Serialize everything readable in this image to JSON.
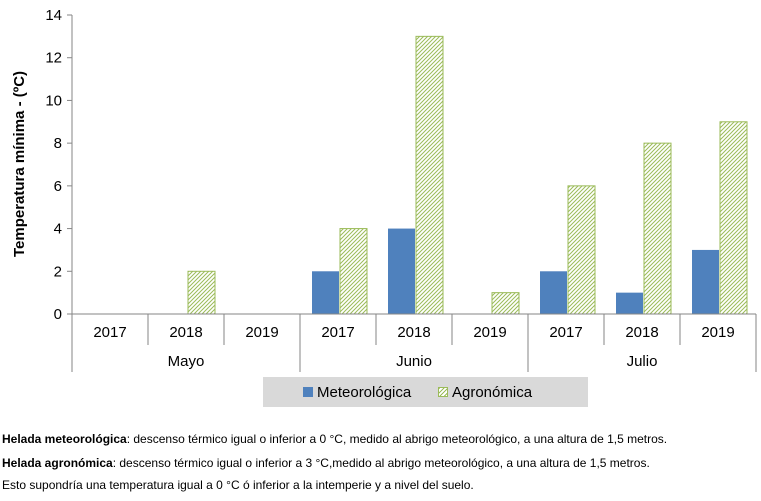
{
  "chart_data": {
    "type": "bar",
    "ylabel": "Temperatura mínima - (ºC)",
    "ylim": [
      0,
      14
    ],
    "yticks": [
      0,
      2,
      4,
      6,
      8,
      10,
      12,
      14
    ],
    "groups": [
      {
        "name": "Mayo",
        "categories": [
          "2017",
          "2018",
          "2019"
        ]
      },
      {
        "name": "Junio",
        "categories": [
          "2017",
          "2018",
          "2019"
        ]
      },
      {
        "name": "Julio",
        "categories": [
          "2017",
          "2018",
          "2019"
        ]
      }
    ],
    "series": [
      {
        "name": "Meteorológica",
        "color": "#4f81bd",
        "values": [
          0,
          0,
          0,
          2,
          4,
          0,
          2,
          1,
          3
        ]
      },
      {
        "name": "Agronómica",
        "color": "#9bbb59",
        "pattern": "diagonal-hatch",
        "values": [
          0,
          2,
          0,
          4,
          13,
          1,
          6,
          8,
          9
        ]
      }
    ],
    "legend_position": "bottom"
  },
  "notes": {
    "line1_bold": "Helada meteorológica",
    "line1_text": ": descenso térmico igual o inferior a 0 °C, medido al abrigo meteorológico, a una altura de 1,5 metros.",
    "line2_bold": "Helada agronómica",
    "line2_text": ": descenso térmico igual o inferior a 3 °C,medido al abrigo meteorológico, a una altura de 1,5 metros.",
    "line3_text": "Esto supondría una temperatura igual a 0 °C ó inferior a la intemperie y a nivel del suelo."
  }
}
